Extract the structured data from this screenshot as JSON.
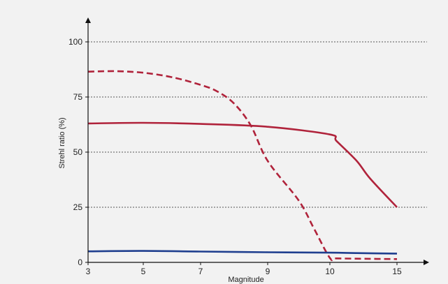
{
  "chart_data": {
    "type": "line",
    "title": "",
    "xlabel": "Magnitude",
    "ylabel": "Strehl ratio (%)",
    "ylim": [
      0,
      112
    ],
    "grid": "horizontal dashed",
    "legend": "none",
    "x_ticks": [
      {
        "value": 3,
        "label": "3"
      },
      {
        "value": 5,
        "label": "5"
      },
      {
        "value": 7,
        "label": "7"
      },
      {
        "value": 9,
        "label": "9"
      },
      {
        "value": 10,
        "label": "10"
      },
      {
        "value": 15,
        "label": "15"
      }
    ],
    "y_ticks": [
      {
        "value": 0,
        "label": "0"
      },
      {
        "value": 25,
        "label": "25"
      },
      {
        "value": 50,
        "label": "50"
      },
      {
        "value": 75,
        "label": "75"
      },
      {
        "value": 100,
        "label": "100"
      }
    ],
    "series": [
      {
        "color": "#b0233b",
        "dash": true,
        "points": [
          [
            3,
            86.5
          ],
          [
            4,
            86.7
          ],
          [
            5,
            86
          ],
          [
            6,
            84
          ],
          [
            7,
            80.5
          ],
          [
            7.5,
            77.5
          ],
          [
            8,
            72
          ],
          [
            8.5,
            62
          ],
          [
            9,
            46
          ],
          [
            9.5,
            28
          ],
          [
            9.75,
            15
          ],
          [
            10,
            2
          ],
          [
            10.5,
            1.8
          ],
          [
            13,
            1.6
          ],
          [
            15,
            1.5
          ]
        ]
      },
      {
        "color": "#b0233b",
        "dash": false,
        "points": [
          [
            3,
            63
          ],
          [
            5,
            63.3
          ],
          [
            7,
            62.8
          ],
          [
            9,
            61.5
          ],
          [
            10,
            58
          ],
          [
            10.5,
            55
          ],
          [
            12,
            46
          ],
          [
            13,
            38
          ],
          [
            15,
            25
          ]
        ]
      },
      {
        "color": "#1f3f8f",
        "dash": false,
        "points": [
          [
            3,
            5
          ],
          [
            5,
            5.2
          ],
          [
            7,
            4.9
          ],
          [
            9,
            4.6
          ],
          [
            10,
            4.4
          ],
          [
            12,
            4.2
          ],
          [
            15,
            4
          ]
        ]
      }
    ]
  }
}
